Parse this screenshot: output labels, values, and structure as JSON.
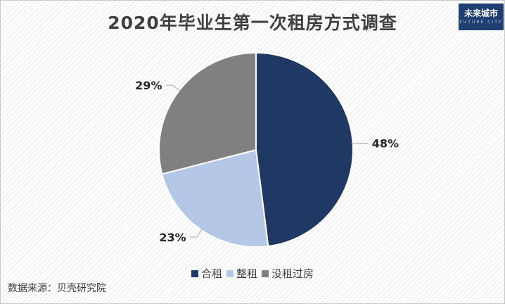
{
  "title": "2020年毕业生第一次租房方式调查",
  "logo": {
    "text": "未来城市",
    "sub": "FUTURE CITY"
  },
  "source": "数据来源：贝壳研究院",
  "chart_data": {
    "type": "pie",
    "title": "2020年毕业生第一次租房方式调查",
    "start_angle_deg": 0,
    "direction": "clockwise",
    "slices": [
      {
        "name": "合租",
        "value": 48,
        "label": "48%",
        "color": "#1f3864"
      },
      {
        "name": "整租",
        "value": 23,
        "label": "23%",
        "color": "#b4c7e7"
      },
      {
        "name": "没租过房",
        "value": 29,
        "label": "29%",
        "color": "#808080"
      }
    ],
    "legend_position": "bottom"
  }
}
